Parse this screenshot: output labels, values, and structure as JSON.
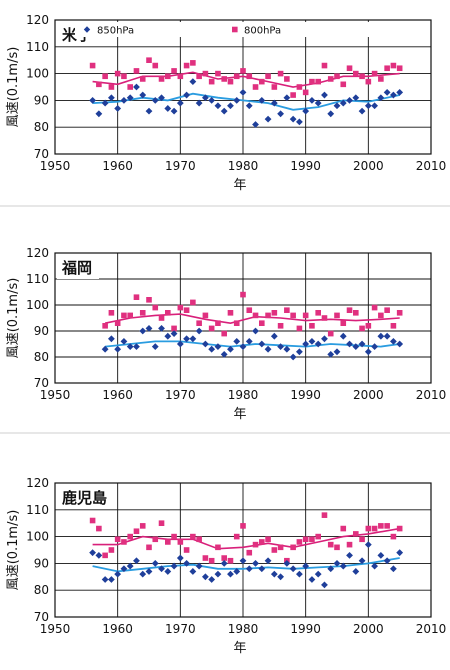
{
  "legend": {
    "series_850": "850hPa",
    "series_800": "800hPa",
    "color_850": "#1f3f9a",
    "color_800": "#e0307f",
    "color_850_line": "#2a9ce0",
    "color_800_line": "#d8207a"
  },
  "chart_data": [
    {
      "type": "scatter",
      "station": "米子",
      "xlabel": "年",
      "ylabel": "風速(0.1m/s)",
      "xlim": [
        1950,
        2010
      ],
      "ylim": [
        70,
        120
      ],
      "xticks": [
        "1950",
        "1960",
        "1970",
        "1980",
        "1990",
        "2000",
        "2010"
      ],
      "yticks": [
        "70",
        "80",
        "90",
        "100",
        "110",
        "120"
      ],
      "grid": true,
      "legend_position": "top",
      "series": [
        {
          "name": "850hPa",
          "x": [
            1956,
            1957,
            1958,
            1959,
            1960,
            1961,
            1962,
            1963,
            1964,
            1965,
            1966,
            1967,
            1968,
            1969,
            1970,
            1971,
            1972,
            1973,
            1974,
            1975,
            1976,
            1977,
            1978,
            1979,
            1980,
            1981,
            1982,
            1983,
            1984,
            1985,
            1986,
            1987,
            1988,
            1989,
            1990,
            1991,
            1992,
            1993,
            1994,
            1995,
            1996,
            1997,
            1998,
            1999,
            2000,
            2001,
            2002,
            2003,
            2004,
            2005
          ],
          "y": [
            90,
            85,
            89,
            91,
            87,
            90,
            91,
            95,
            92,
            86,
            90,
            91,
            87,
            86,
            89,
            92,
            97,
            89,
            91,
            90,
            88,
            86,
            88,
            90,
            93,
            88,
            81,
            90,
            83,
            89,
            85,
            91,
            83,
            82,
            86,
            90,
            89,
            92,
            85,
            88,
            89,
            90,
            91,
            86,
            88,
            88,
            91,
            93,
            92,
            93
          ]
        },
        {
          "name": "800hPa",
          "x": [
            1956,
            1957,
            1958,
            1959,
            1960,
            1961,
            1962,
            1963,
            1964,
            1965,
            1966,
            1967,
            1968,
            1969,
            1970,
            1971,
            1972,
            1973,
            1974,
            1975,
            1976,
            1977,
            1978,
            1979,
            1980,
            1981,
            1982,
            1983,
            1984,
            1985,
            1986,
            1987,
            1988,
            1989,
            1990,
            1991,
            1992,
            1993,
            1994,
            1995,
            1996,
            1997,
            1998,
            1999,
            2000,
            2001,
            2002,
            2003,
            2004,
            2005
          ],
          "y": [
            103,
            96,
            99,
            95,
            100,
            99,
            95,
            101,
            98,
            105,
            103,
            98,
            99,
            101,
            99,
            103,
            104,
            99,
            100,
            97,
            100,
            98,
            97,
            99,
            101,
            99,
            95,
            97,
            99,
            95,
            100,
            98,
            92,
            95,
            93,
            97,
            97,
            103,
            98,
            99,
            96,
            102,
            100,
            99,
            97,
            100,
            98,
            102,
            103,
            102
          ]
        }
      ],
      "trend_850": {
        "x": [
          1956,
          1960,
          1964,
          1968,
          1972,
          1976,
          1980,
          1984,
          1988,
          1992,
          1996,
          2000,
          2005
        ],
        "y": [
          89,
          89.5,
          91,
          90,
          92.5,
          91,
          90,
          89,
          86.5,
          87.5,
          90,
          89.5,
          92
        ]
      },
      "trend_800": {
        "x": [
          1956,
          1960,
          1964,
          1968,
          1972,
          1976,
          1980,
          1984,
          1988,
          1992,
          1996,
          2000,
          2005
        ],
        "y": [
          97,
          96,
          99,
          99,
          100.5,
          98,
          99,
          97,
          95,
          96.5,
          99,
          99,
          100
        ]
      }
    },
    {
      "type": "scatter",
      "station": "福岡",
      "xlabel": "年",
      "ylabel": "風速(0.1m/s)",
      "xlim": [
        1950,
        2010
      ],
      "ylim": [
        70,
        120
      ],
      "xticks": [
        "1950",
        "1960",
        "1970",
        "1980",
        "1990",
        "2000",
        "2010"
      ],
      "yticks": [
        "70",
        "80",
        "90",
        "100",
        "110",
        "120"
      ],
      "grid": true,
      "series": [
        {
          "name": "850hPa",
          "x": [
            1958,
            1959,
            1960,
            1961,
            1962,
            1963,
            1964,
            1965,
            1966,
            1967,
            1968,
            1969,
            1970,
            1971,
            1972,
            1973,
            1974,
            1975,
            1976,
            1977,
            1978,
            1979,
            1980,
            1981,
            1982,
            1983,
            1984,
            1985,
            1986,
            1987,
            1988,
            1989,
            1990,
            1991,
            1992,
            1993,
            1994,
            1995,
            1996,
            1997,
            1998,
            1999,
            2000,
            2001,
            2002,
            2003,
            2004,
            2005
          ],
          "y": [
            83,
            87,
            83,
            86,
            84,
            84,
            90,
            91,
            84,
            91,
            88,
            89,
            85,
            87,
            87,
            90,
            85,
            83,
            84,
            81,
            83,
            86,
            84,
            86,
            90,
            85,
            83,
            88,
            84,
            83,
            80,
            82,
            85,
            86,
            85,
            87,
            81,
            82,
            88,
            85,
            84,
            85,
            82,
            84,
            88,
            88,
            86,
            85
          ]
        },
        {
          "name": "800hPa",
          "x": [
            1958,
            1959,
            1960,
            1961,
            1962,
            1963,
            1964,
            1965,
            1966,
            1967,
            1968,
            1969,
            1970,
            1971,
            1972,
            1973,
            1974,
            1975,
            1976,
            1977,
            1978,
            1979,
            1980,
            1981,
            1982,
            1983,
            1984,
            1985,
            1986,
            1987,
            1988,
            1989,
            1990,
            1991,
            1992,
            1993,
            1994,
            1995,
            1996,
            1997,
            1998,
            1999,
            2000,
            2001,
            2002,
            2003,
            2004,
            2005
          ],
          "y": [
            92,
            97,
            93,
            96,
            96,
            103,
            97,
            102,
            99,
            95,
            97,
            91,
            99,
            98,
            101,
            93,
            96,
            91,
            93,
            89,
            97,
            93,
            104,
            98,
            96,
            93,
            96,
            97,
            92,
            98,
            96,
            91,
            96,
            92,
            97,
            95,
            89,
            96,
            93,
            98,
            97,
            91,
            92,
            99,
            96,
            98,
            92,
            97
          ]
        }
      ],
      "trend_850": {
        "x": [
          1958,
          1962,
          1966,
          1970,
          1974,
          1978,
          1982,
          1986,
          1990,
          1994,
          1998,
          2002,
          2005
        ],
        "y": [
          84,
          85,
          86,
          86,
          85,
          84,
          85,
          84.5,
          84,
          85,
          84.5,
          84,
          85
        ]
      },
      "trend_800": {
        "x": [
          1958,
          1962,
          1966,
          1970,
          1974,
          1978,
          1982,
          1986,
          1990,
          1994,
          1998,
          2002,
          2005
        ],
        "y": [
          93,
          95,
          96,
          96.5,
          94.5,
          93,
          95.5,
          95,
          94,
          94.5,
          94,
          94.5,
          95
        ]
      }
    },
    {
      "type": "scatter",
      "station": "鹿児島",
      "xlabel": "年",
      "ylabel": "風速(0.1m/s)",
      "xlim": [
        1950,
        2010
      ],
      "ylim": [
        70,
        120
      ],
      "xticks": [
        "1950",
        "1960",
        "1970",
        "1980",
        "1990",
        "2000",
        "2010"
      ],
      "yticks": [
        "70",
        "80",
        "90",
        "100",
        "110",
        "120"
      ],
      "grid": true,
      "series": [
        {
          "name": "850hPa",
          "x": [
            1956,
            1957,
            1958,
            1959,
            1960,
            1961,
            1962,
            1963,
            1964,
            1965,
            1966,
            1967,
            1968,
            1969,
            1970,
            1971,
            1972,
            1973,
            1974,
            1975,
            1976,
            1977,
            1978,
            1979,
            1980,
            1981,
            1982,
            1983,
            1984,
            1985,
            1986,
            1987,
            1988,
            1989,
            1990,
            1991,
            1992,
            1993,
            1994,
            1995,
            1996,
            1997,
            1998,
            1999,
            2000,
            2001,
            2002,
            2003,
            2004,
            2005
          ],
          "y": [
            94,
            93,
            84,
            84,
            86,
            88,
            89,
            91,
            86,
            87,
            90,
            88,
            87,
            89,
            92,
            90,
            87,
            89,
            85,
            84,
            86,
            90,
            86,
            87,
            91,
            88,
            90,
            88,
            91,
            86,
            85,
            90,
            88,
            86,
            89,
            84,
            86,
            82,
            88,
            90,
            89,
            93,
            87,
            91,
            97,
            89,
            93,
            91,
            88,
            94
          ]
        },
        {
          "name": "800hPa",
          "x": [
            1956,
            1957,
            1958,
            1959,
            1960,
            1961,
            1962,
            1963,
            1964,
            1965,
            1966,
            1967,
            1968,
            1969,
            1970,
            1971,
            1972,
            1973,
            1974,
            1975,
            1976,
            1977,
            1978,
            1979,
            1980,
            1981,
            1982,
            1983,
            1984,
            1985,
            1986,
            1987,
            1988,
            1989,
            1990,
            1991,
            1992,
            1993,
            1994,
            1995,
            1996,
            1997,
            1998,
            1999,
            2000,
            2001,
            2002,
            2003,
            2004,
            2005
          ],
          "y": [
            106,
            103,
            93,
            95,
            99,
            98,
            100,
            102,
            104,
            96,
            99,
            105,
            98,
            100,
            98,
            95,
            100,
            99,
            92,
            91,
            96,
            92,
            91,
            100,
            104,
            94,
            97,
            98,
            99,
            95,
            96,
            91,
            96,
            98,
            99,
            99,
            100,
            108,
            97,
            96,
            103,
            97,
            101,
            99,
            103,
            103,
            104,
            104,
            100,
            103
          ]
        }
      ],
      "trend_850": {
        "x": [
          1956,
          1960,
          1964,
          1968,
          1972,
          1976,
          1980,
          1984,
          1988,
          1992,
          1996,
          2000,
          2005
        ],
        "y": [
          89,
          87,
          88,
          89,
          89.5,
          88,
          88,
          88.5,
          88,
          88.5,
          89,
          90,
          92
        ]
      },
      "trend_800": {
        "x": [
          1956,
          1960,
          1964,
          1968,
          1972,
          1976,
          1980,
          1984,
          1988,
          1992,
          1996,
          2000,
          2005
        ],
        "y": [
          97,
          97,
          100,
          99,
          99,
          95.5,
          96,
          97.5,
          96,
          98,
          100,
          101,
          103
        ]
      }
    }
  ]
}
